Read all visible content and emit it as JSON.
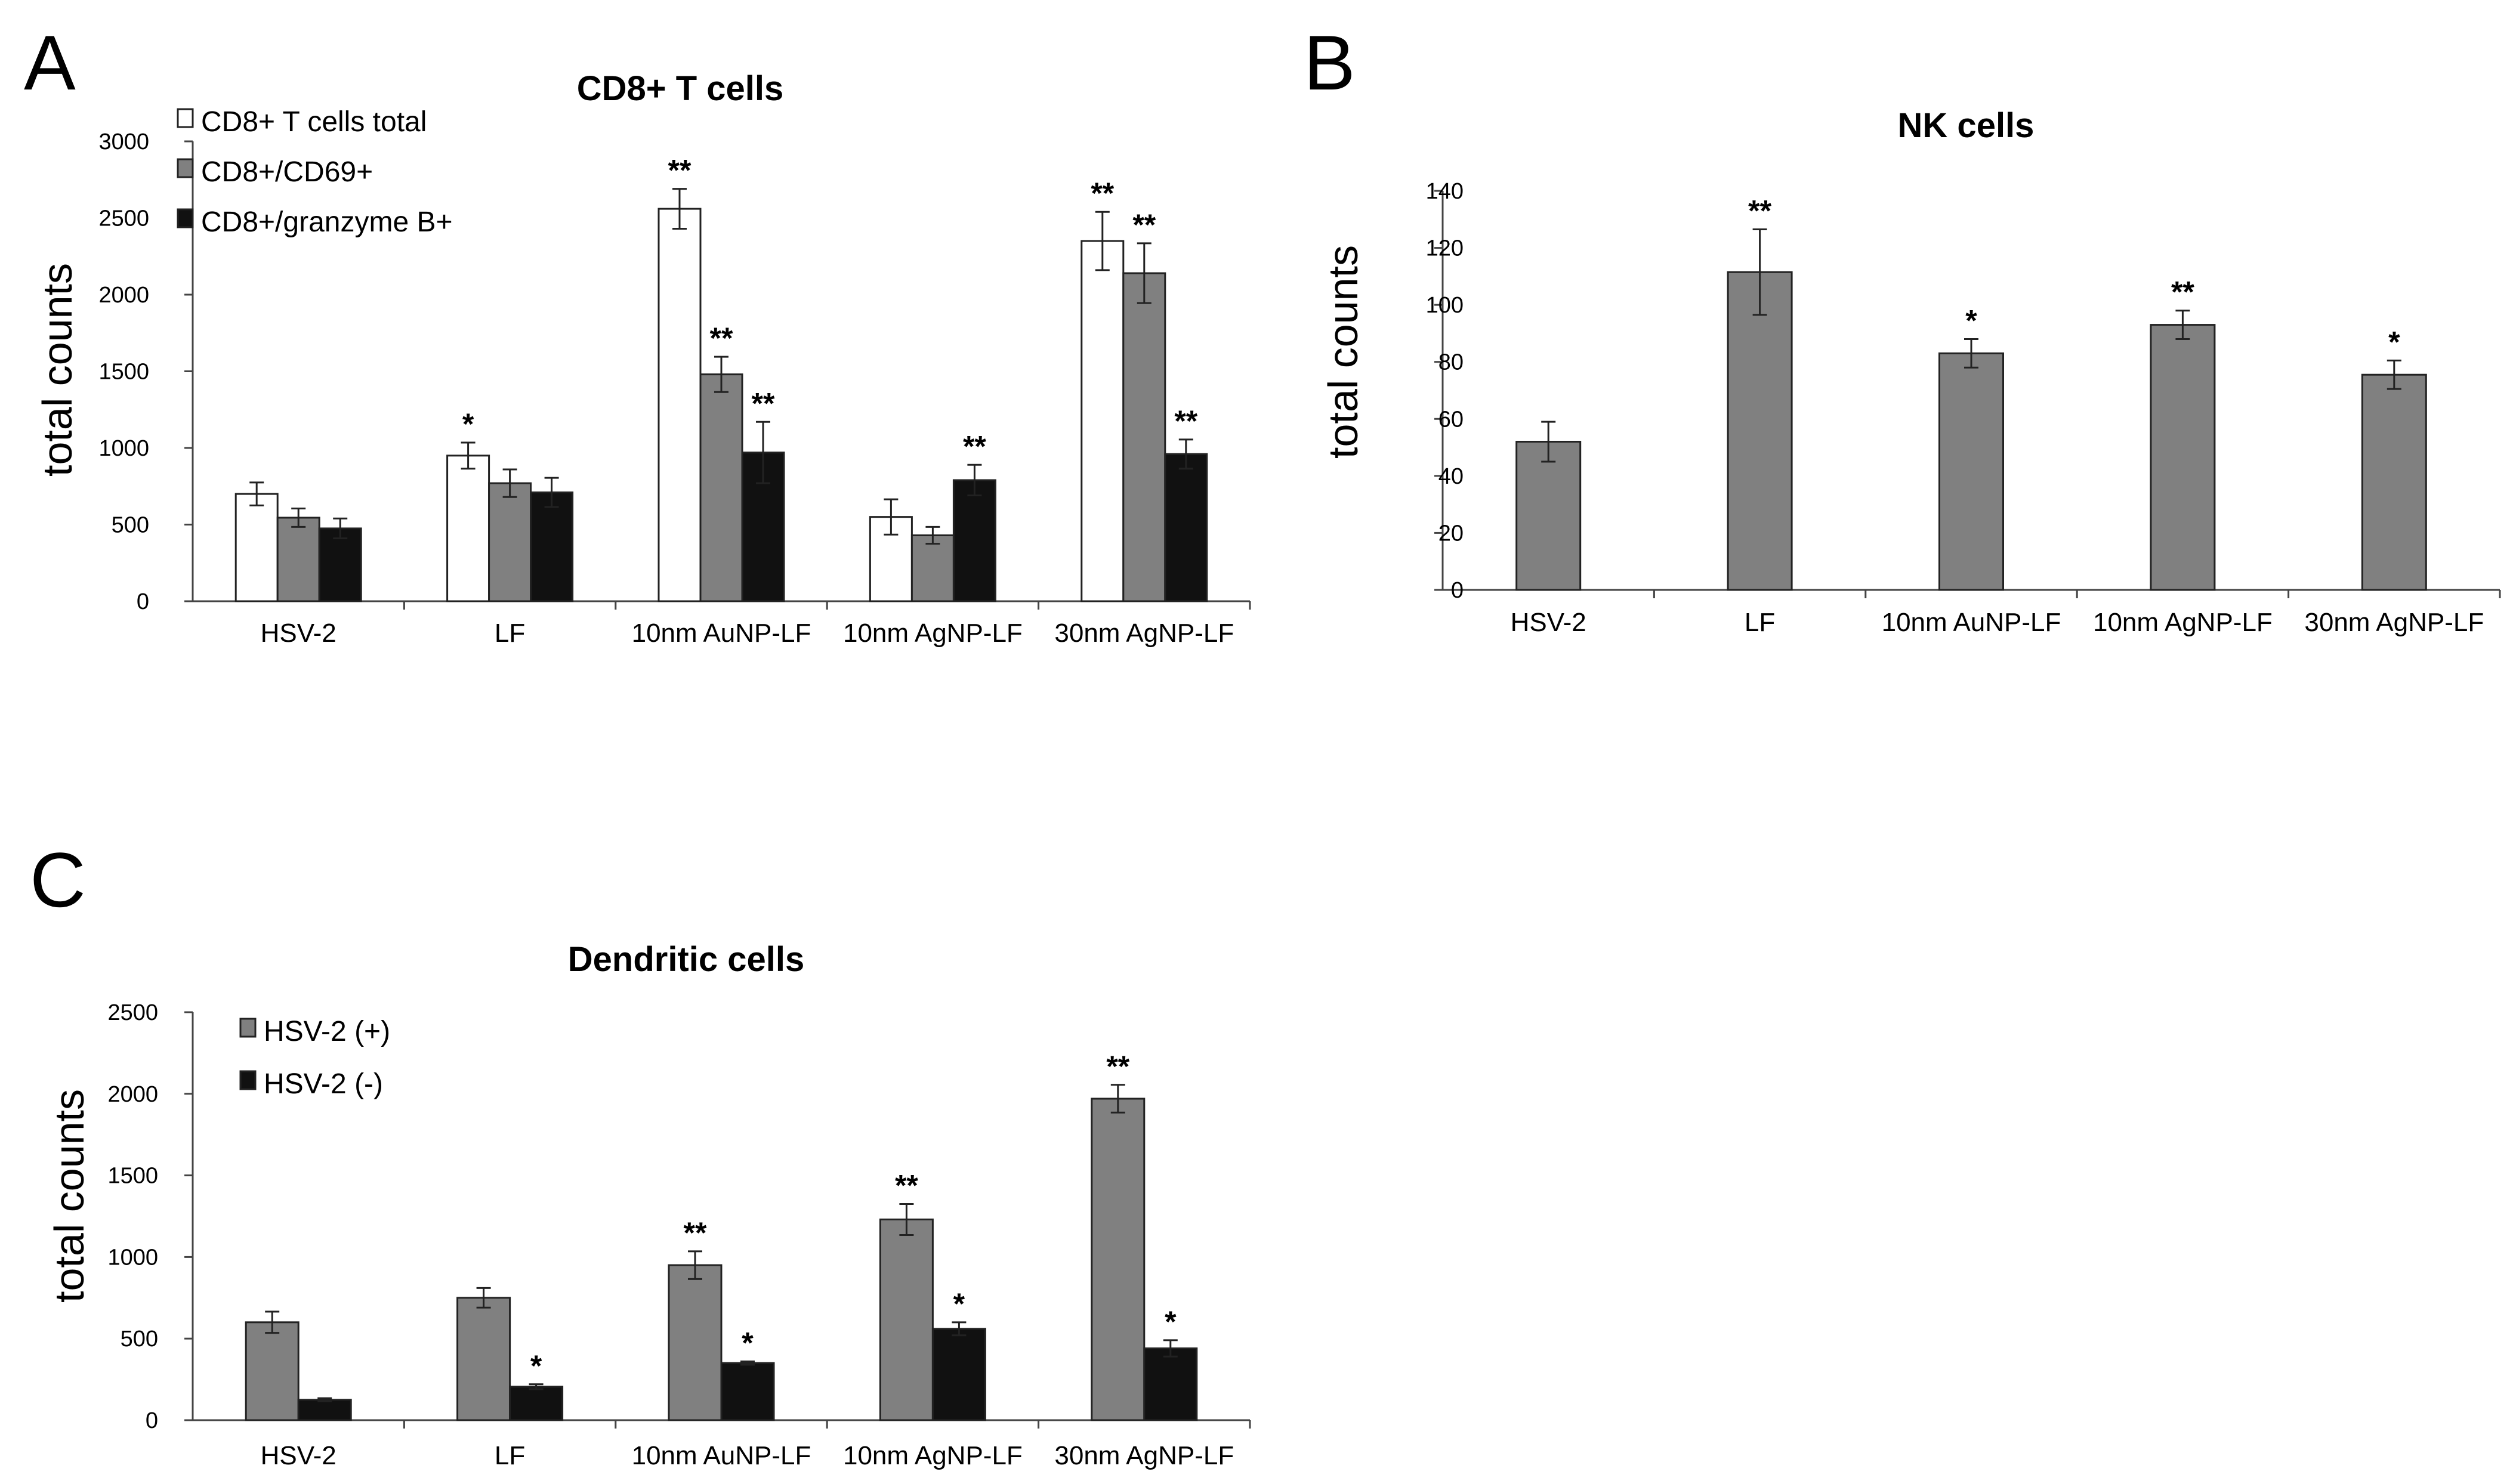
{
  "chart_data": [
    {
      "type": "bar",
      "panel": "A",
      "title": "CD8+ T cells",
      "xlabel": "",
      "ylabel": "total counts",
      "ylim": [
        0,
        3000
      ],
      "yticks": [
        0,
        500,
        1000,
        1500,
        2000,
        2500,
        3000
      ],
      "grid": false,
      "legend_position": "top-left",
      "categories": [
        "HSV-2",
        "LF",
        "10nm AuNP-LF",
        "10nm AgNP-LF",
        "30nm AgNP-LF"
      ],
      "series": [
        {
          "name": "CD8+ T cells total",
          "color": "#ffffff",
          "values": [
            700,
            950,
            2560,
            550,
            2350
          ],
          "errors": [
            75,
            85,
            130,
            115,
            190
          ],
          "significance": [
            "",
            "*",
            "**",
            "",
            "**"
          ]
        },
        {
          "name": "CD8+/CD69+",
          "color": "#808080",
          "values": [
            545,
            770,
            1480,
            430,
            2140
          ],
          "errors": [
            60,
            90,
            115,
            55,
            195
          ],
          "significance": [
            "",
            "",
            "**",
            "",
            "**"
          ]
        },
        {
          "name": "CD8+/granzyme B+",
          "color": "#111111",
          "values": [
            475,
            710,
            970,
            790,
            960
          ],
          "errors": [
            65,
            95,
            200,
            100,
            95
          ],
          "significance": [
            "",
            "",
            "**",
            "**",
            "**"
          ]
        }
      ]
    },
    {
      "type": "bar",
      "panel": "B",
      "title": "NK cells",
      "xlabel": "",
      "ylabel": "total counts",
      "ylim": [
        0,
        140
      ],
      "yticks": [
        0,
        20,
        40,
        60,
        80,
        100,
        120,
        140
      ],
      "grid": false,
      "categories": [
        "HSV-2",
        "LF",
        "10nm AuNP-LF",
        "10nm AgNP-LF",
        "30nm AgNP-LF"
      ],
      "series": [
        {
          "name": "NK cells",
          "color": "#808080",
          "values": [
            52,
            111.5,
            83,
            93,
            75.5
          ],
          "errors": [
            7,
            15,
            5,
            5,
            5
          ],
          "significance": [
            "",
            "**",
            "*",
            "**",
            "*"
          ]
        }
      ]
    },
    {
      "type": "bar",
      "panel": "C",
      "title": "Dendritic cells",
      "xlabel": "",
      "ylabel": "total counts",
      "ylim": [
        0,
        2500
      ],
      "yticks": [
        0,
        500,
        1000,
        1500,
        2000,
        2500
      ],
      "grid": false,
      "legend_position": "top-left",
      "categories": [
        "HSV-2",
        "LF",
        "10nm AuNP-LF",
        "10nm AgNP-LF",
        "30nm AgNP-LF"
      ],
      "series": [
        {
          "name": "HSV-2 (+)",
          "color": "#808080",
          "values": [
            600,
            750,
            950,
            1230,
            1970
          ],
          "errors": [
            65,
            60,
            85,
            95,
            85
          ],
          "significance": [
            "",
            "",
            "**",
            "**",
            "**"
          ]
        },
        {
          "name": "HSV-2 (-)",
          "color": "#111111",
          "values": [
            125,
            205,
            350,
            560,
            440
          ],
          "errors": [
            10,
            15,
            10,
            40,
            50
          ],
          "significance": [
            "",
            "*",
            "*",
            "*",
            "*"
          ]
        }
      ]
    }
  ]
}
